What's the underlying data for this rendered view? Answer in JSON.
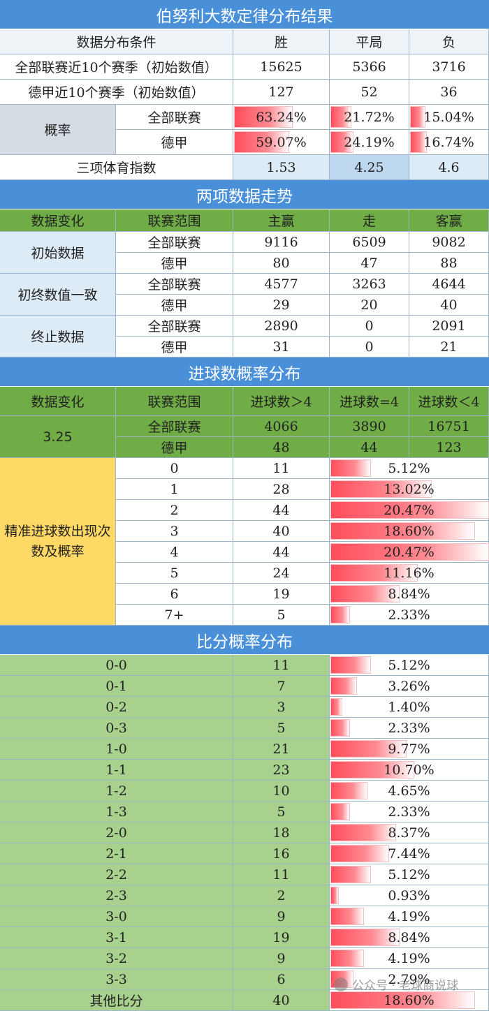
{
  "s1": {
    "title": "伯努利大数定律分布结果",
    "header": [
      "数据分布条件",
      "胜",
      "平局",
      "负"
    ],
    "rows": [
      {
        "label": "全部联赛近10个赛季（初始数值）",
        "v": [
          "15625",
          "5366",
          "3716"
        ]
      },
      {
        "label": "德甲近10个赛季（初始数值）",
        "v": [
          "127",
          "52",
          "36"
        ]
      }
    ],
    "prob_label": "概率",
    "prob_rows": [
      {
        "label": "全部联赛",
        "v": [
          "63.24%",
          "21.72%",
          "15.04%"
        ],
        "f": [
          0.6324,
          0.2172,
          0.1504
        ]
      },
      {
        "label": "德甲",
        "v": [
          "59.07%",
          "24.19%",
          "16.74%"
        ],
        "f": [
          0.5907,
          0.2419,
          0.1674
        ]
      }
    ],
    "index_label": "三项体育指数",
    "index_values": [
      "1.53",
      "4.25",
      "4.6"
    ]
  },
  "s2": {
    "title": "两项数据走势",
    "header": [
      "数据变化",
      "联赛范围",
      "主赢",
      "走",
      "客赢"
    ],
    "groups": [
      {
        "label": "初始数据",
        "rows": [
          {
            "scope": "全部联赛",
            "v": [
              "9116",
              "6509",
              "9082"
            ]
          },
          {
            "scope": "德甲",
            "v": [
              "80",
              "47",
              "88"
            ]
          }
        ]
      },
      {
        "label": "初终数值一致",
        "rows": [
          {
            "scope": "全部联赛",
            "v": [
              "4577",
              "3263",
              "4644"
            ]
          },
          {
            "scope": "德甲",
            "v": [
              "29",
              "20",
              "40"
            ]
          }
        ]
      },
      {
        "label": "终止数据",
        "rows": [
          {
            "scope": "全部联赛",
            "v": [
              "2890",
              "0",
              "2091"
            ]
          },
          {
            "scope": "德甲",
            "v": [
              "31",
              "0",
              "21"
            ]
          }
        ]
      }
    ]
  },
  "s3": {
    "title": "进球数概率分布",
    "header": [
      "数据变化",
      "联赛范围",
      "进球数＞4",
      "进球数=4",
      "进球数＜4"
    ],
    "value": "3.25",
    "rows": [
      {
        "scope": "全部联赛",
        "v": [
          "4066",
          "3890",
          "16751"
        ]
      },
      {
        "scope": "德甲",
        "v": [
          "48",
          "44",
          "123"
        ]
      }
    ],
    "dist_label": "精准进球数出现次数及概率",
    "dist": [
      {
        "k": "0",
        "n": "11",
        "p": "5.12%",
        "f": 0.0512
      },
      {
        "k": "1",
        "n": "28",
        "p": "13.02%",
        "f": 0.1302
      },
      {
        "k": "2",
        "n": "44",
        "p": "20.47%",
        "f": 0.2047
      },
      {
        "k": "3",
        "n": "40",
        "p": "18.60%",
        "f": 0.186
      },
      {
        "k": "4",
        "n": "44",
        "p": "20.47%",
        "f": 0.2047
      },
      {
        "k": "5",
        "n": "24",
        "p": "11.16%",
        "f": 0.1116
      },
      {
        "k": "6",
        "n": "19",
        "p": "8.84%",
        "f": 0.0884
      },
      {
        "k": "7+",
        "n": "5",
        "p": "2.33%",
        "f": 0.0233
      }
    ]
  },
  "s4": {
    "title": "比分概率分布",
    "rows": [
      {
        "k": "0-0",
        "n": "11",
        "p": "5.12%",
        "f": 0.0512
      },
      {
        "k": "0-1",
        "n": "7",
        "p": "3.26%",
        "f": 0.0326
      },
      {
        "k": "0-2",
        "n": "3",
        "p": "1.40%",
        "f": 0.014
      },
      {
        "k": "0-3",
        "n": "5",
        "p": "2.33%",
        "f": 0.0233
      },
      {
        "k": "1-0",
        "n": "21",
        "p": "9.77%",
        "f": 0.0977
      },
      {
        "k": "1-1",
        "n": "23",
        "p": "10.70%",
        "f": 0.107
      },
      {
        "k": "1-2",
        "n": "10",
        "p": "4.65%",
        "f": 0.0465
      },
      {
        "k": "1-3",
        "n": "5",
        "p": "2.33%",
        "f": 0.0233
      },
      {
        "k": "2-0",
        "n": "18",
        "p": "8.37%",
        "f": 0.0837
      },
      {
        "k": "2-1",
        "n": "16",
        "p": "7.44%",
        "f": 0.0744
      },
      {
        "k": "2-2",
        "n": "11",
        "p": "5.12%",
        "f": 0.0512
      },
      {
        "k": "2-3",
        "n": "2",
        "p": "0.93%",
        "f": 0.0093
      },
      {
        "k": "3-0",
        "n": "9",
        "p": "4.19%",
        "f": 0.0419
      },
      {
        "k": "3-1",
        "n": "19",
        "p": "8.84%",
        "f": 0.0884
      },
      {
        "k": "3-2",
        "n": "9",
        "p": "4.19%",
        "f": 0.0419
      },
      {
        "k": "3-3",
        "n": "6",
        "p": "2.79%",
        "f": 0.0279
      },
      {
        "k": "其他比分",
        "n": "40",
        "p": "18.60%",
        "f": 0.186
      }
    ]
  },
  "watermark": "公众号 · 老球商说球"
}
